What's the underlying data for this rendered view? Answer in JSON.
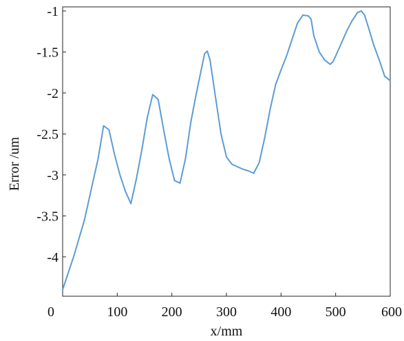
{
  "chart_data": {
    "type": "line",
    "title": "",
    "xlabel": "x/mm",
    "ylabel": "Error /um",
    "xlim": [
      0,
      600
    ],
    "ylim": [
      -4.48,
      -0.95
    ],
    "x_ticks": [
      0,
      100,
      200,
      300,
      400,
      500,
      600
    ],
    "x_tick_labels": [
      "0",
      "100",
      "200",
      "300",
      "400",
      "500",
      "600"
    ],
    "y_ticks": [
      -1,
      -1.5,
      -2,
      -2.5,
      -3,
      -3.5,
      -4
    ],
    "y_tick_labels": [
      "-1",
      "-1.5",
      "-2",
      "-2.5",
      "-3",
      "-3.5",
      "-4"
    ],
    "grid": false,
    "legend": "none",
    "series": [
      {
        "color": "#5b9bd5",
        "x": [
          0,
          20,
          40,
          55,
          65,
          75,
          85,
          95,
          105,
          115,
          125,
          135,
          145,
          155,
          165,
          175,
          185,
          195,
          205,
          215,
          225,
          235,
          245,
          255,
          260,
          265,
          270,
          280,
          290,
          300,
          310,
          320,
          330,
          340,
          350,
          360,
          370,
          380,
          390,
          400,
          410,
          420,
          430,
          440,
          450,
          455,
          460,
          470,
          480,
          490,
          495,
          500,
          510,
          520,
          530,
          540,
          547,
          553,
          560,
          570,
          580,
          590,
          600
        ],
        "y": [
          -4.4,
          -4.0,
          -3.55,
          -3.1,
          -2.8,
          -2.4,
          -2.45,
          -2.75,
          -3.0,
          -3.2,
          -3.35,
          -3.05,
          -2.7,
          -2.3,
          -2.02,
          -2.08,
          -2.45,
          -2.8,
          -3.07,
          -3.1,
          -2.8,
          -2.35,
          -2.0,
          -1.68,
          -1.52,
          -1.49,
          -1.6,
          -2.05,
          -2.5,
          -2.78,
          -2.87,
          -2.9,
          -2.93,
          -2.95,
          -2.98,
          -2.85,
          -2.55,
          -2.2,
          -1.9,
          -1.72,
          -1.55,
          -1.35,
          -1.15,
          -1.05,
          -1.06,
          -1.1,
          -1.3,
          -1.5,
          -1.6,
          -1.65,
          -1.62,
          -1.55,
          -1.4,
          -1.25,
          -1.12,
          -1.02,
          -1.0,
          -1.05,
          -1.2,
          -1.42,
          -1.6,
          -1.8,
          -1.85
        ]
      }
    ]
  }
}
